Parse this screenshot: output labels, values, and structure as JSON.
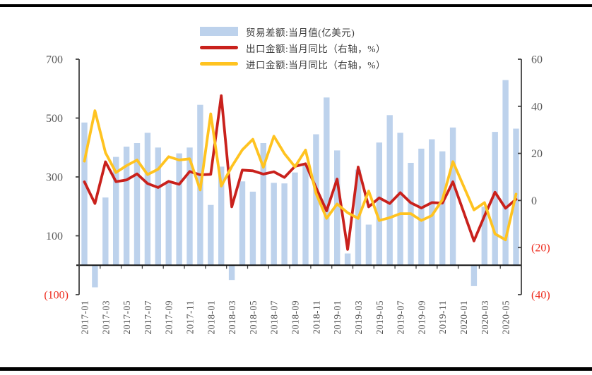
{
  "style": {
    "page_rule_color": "#000000",
    "axis_line_color": "#404040",
    "zero_line_color": "#111111",
    "tick_label_color": "#595959",
    "negative_tick_color": "#ee2d1f",
    "x_label_color": "#4d4d4d",
    "legend_text_color": "#3d3d3d"
  },
  "chart_data": {
    "type": "combo (bar + line, dual axis)",
    "title": "",
    "grid": false,
    "legend_position": "top-center",
    "x": [
      "2017-01",
      "2017-02",
      "2017-03",
      "2017-04",
      "2017-05",
      "2017-06",
      "2017-07",
      "2017-08",
      "2017-09",
      "2017-10",
      "2017-11",
      "2017-12",
      "2018-01",
      "2018-02",
      "2018-03",
      "2018-04",
      "2018-05",
      "2018-06",
      "2018-07",
      "2018-08",
      "2018-09",
      "2018-10",
      "2018-11",
      "2018-12",
      "2019-01",
      "2019-02",
      "2019-03",
      "2019-04",
      "2019-05",
      "2019-06",
      "2019-07",
      "2019-08",
      "2019-09",
      "2019-10",
      "2019-11",
      "2019-12",
      "2020-01",
      "2020-02",
      "2020-03",
      "2020-04",
      "2020-05",
      "2020-06"
    ],
    "x_tick_labels": [
      "2017-01",
      "2017-03",
      "2017-05",
      "2017-07",
      "2017-09",
      "2017-11",
      "2018-01",
      "2018-03",
      "2018-05",
      "2018-07",
      "2018-09",
      "2018-11",
      "2019-01",
      "2019-03",
      "2019-05",
      "2019-07",
      "2019-09",
      "2019-11",
      "2020-01",
      "2020-03",
      "2020-05"
    ],
    "left_axis": {
      "min": -100,
      "max": 700,
      "ticks": [
        700,
        500,
        300,
        100,
        -100
      ],
      "tick_labels": [
        "700",
        "500",
        "300",
        "100",
        "(100)"
      ]
    },
    "right_axis": {
      "min": -40,
      "max": 60,
      "ticks": [
        60,
        40,
        20,
        0,
        -20,
        -40
      ],
      "tick_labels": [
        "60",
        "40",
        "20",
        "0",
        "(20)",
        "(40)"
      ]
    },
    "series": [
      {
        "id": "trade_balance",
        "name": "贸易差额:当月值(亿美元)",
        "type": "bar",
        "axis": "left",
        "color": "#bdd2ec",
        "values": [
          485,
          -75,
          230,
          368,
          403,
          415,
          450,
          400,
          285,
          380,
          400,
          545,
          205,
          335,
          -50,
          285,
          250,
          415,
          280,
          278,
          315,
          340,
          445,
          570,
          390,
          40,
          325,
          138,
          417,
          510,
          450,
          348,
          396,
          428,
          387,
          468,
          null,
          -71,
          199,
          453,
          629,
          464
        ]
      },
      {
        "id": "export_yoy",
        "name": "出口金额:当月同比（右轴，%）",
        "type": "line",
        "axis": "right",
        "color": "#c9211c",
        "values": [
          7.9,
          -1.3,
          16.4,
          8.0,
          8.7,
          11.3,
          7.2,
          5.5,
          8.1,
          6.9,
          12.3,
          10.9,
          11.1,
          44.5,
          -2.7,
          12.9,
          12.6,
          11.2,
          12.2,
          9.8,
          14.5,
          15.6,
          5.4,
          -4.4,
          9.1,
          -20.8,
          14.2,
          -2.7,
          1.1,
          -1.3,
          3.3,
          -1.0,
          -3.2,
          -0.9,
          -1.1,
          7.9,
          null,
          -17.2,
          -6.6,
          3.5,
          -3.3,
          0.5
        ]
      },
      {
        "id": "import_yoy",
        "name": "进口金额:当月同比（右轴，%）",
        "type": "line",
        "axis": "right",
        "color": "#ffc320",
        "values": [
          16.7,
          38.1,
          20.3,
          11.9,
          14.8,
          17.2,
          11.0,
          13.3,
          18.6,
          17.2,
          17.7,
          4.5,
          36.8,
          6.1,
          14.4,
          21.5,
          26.0,
          14.1,
          27.3,
          19.9,
          14.3,
          21.4,
          3.0,
          -7.6,
          -1.5,
          -5.2,
          -7.6,
          4.0,
          -8.5,
          -7.3,
          -5.6,
          -5.6,
          -8.5,
          -6.4,
          0.3,
          16.5,
          null,
          -4.0,
          -0.9,
          -14.2,
          -16.7,
          2.7
        ]
      }
    ]
  }
}
